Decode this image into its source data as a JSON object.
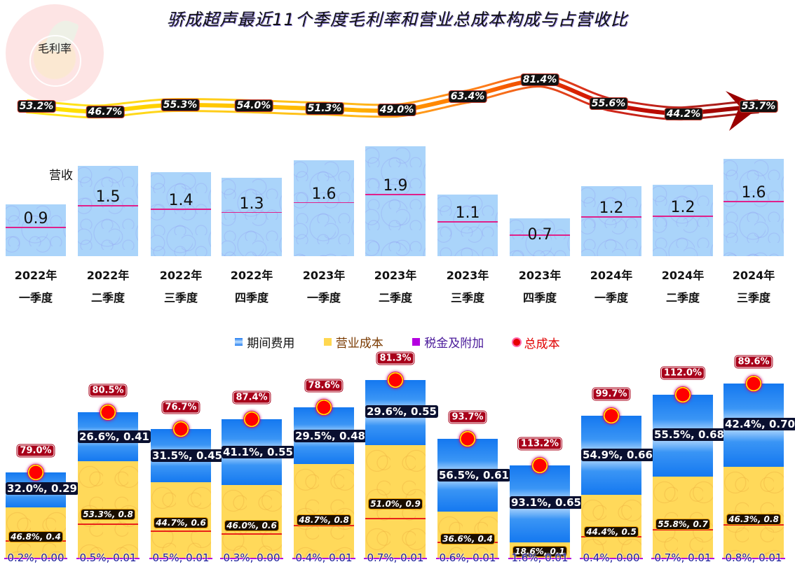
{
  "title": "骄成超声最近11个季度毛利率和营业总成本构成与占营收比",
  "logo_label": "毛利率",
  "revenue_axis_label": "营收",
  "legend": [
    {
      "label": "期间费用",
      "color": "#1e7af0",
      "swatch": "blue"
    },
    {
      "label": "营业成本",
      "color": "#ffd750",
      "swatch": "yellow"
    },
    {
      "label": "税金及附加",
      "color": "#b400e0",
      "swatch": "purple"
    },
    {
      "label": "总成本",
      "color": "#e60000",
      "swatch": "dot"
    }
  ],
  "quarters": [
    {
      "year": "2022年",
      "q": "一季度",
      "gross_margin": "53.2%",
      "revenue": "0.9",
      "total_cost_pct": "79.0%",
      "period_expense": "32.0%, 0.29",
      "operating_cost": "46.8%,  0.4",
      "tax": "0.2%, 0.00"
    },
    {
      "year": "2022年",
      "q": "二季度",
      "gross_margin": "46.7%",
      "revenue": "1.5",
      "total_cost_pct": "80.5%",
      "period_expense": "26.6%, 0.41",
      "operating_cost": "53.3%,  0.8",
      "tax": "0.5%, 0.01"
    },
    {
      "year": "2022年",
      "q": "三季度",
      "gross_margin": "55.3%",
      "revenue": "1.4",
      "total_cost_pct": "76.7%",
      "period_expense": "31.5%, 0.45",
      "operating_cost": "44.7%,  0.6",
      "tax": "0.5%, 0.01"
    },
    {
      "year": "2022年",
      "q": "四季度",
      "gross_margin": "54.0%",
      "revenue": "1.3",
      "total_cost_pct": "87.4%",
      "period_expense": "41.1%, 0.55",
      "operating_cost": "46.0%,  0.6",
      "tax": "0.3%, 0.00"
    },
    {
      "year": "2023年",
      "q": "一季度",
      "gross_margin": "51.3%",
      "revenue": "1.6",
      "total_cost_pct": "78.6%",
      "period_expense": "29.5%, 0.48",
      "operating_cost": "48.7%,  0.8",
      "tax": "0.4%, 0.01"
    },
    {
      "year": "2023年",
      "q": "二季度",
      "gross_margin": "49.0%",
      "revenue": "1.9",
      "total_cost_pct": "81.3%",
      "period_expense": "29.6%, 0.55",
      "operating_cost": "51.0%,  0.9",
      "tax": "0.7%, 0.01"
    },
    {
      "year": "2023年",
      "q": "三季度",
      "gross_margin": "63.4%",
      "revenue": "1.1",
      "total_cost_pct": "93.7%",
      "period_expense": "56.5%, 0.61",
      "operating_cost": "36.6%,  0.4",
      "tax": "0.6%, 0.01"
    },
    {
      "year": "2023年",
      "q": "四季度",
      "gross_margin": "81.4%",
      "revenue": "0.7",
      "total_cost_pct": "113.2%",
      "period_expense": "93.1%, 0.65",
      "operating_cost": "18.6%,  0.1",
      "tax": "1.6%, 0.01"
    },
    {
      "year": "2024年",
      "q": "一季度",
      "gross_margin": "55.6%",
      "revenue": "1.2",
      "total_cost_pct": "99.7%",
      "period_expense": "54.9%, 0.66",
      "operating_cost": "44.4%,  0.5",
      "tax": "0.4%, 0.00"
    },
    {
      "year": "2024年",
      "q": "二季度",
      "gross_margin": "44.2%",
      "revenue": "1.2",
      "total_cost_pct": "112.0%",
      "period_expense": "55.5%, 0.68",
      "operating_cost": "55.8%,  0.7",
      "tax": "0.7%, 0.01"
    },
    {
      "year": "2024年",
      "q": "三季度",
      "gross_margin": "53.7%",
      "revenue": "1.6",
      "total_cost_pct": "89.6%",
      "period_expense": "42.4%, 0.70",
      "operating_cost": "46.3%,  0.8",
      "tax": "0.8%, 0.01"
    }
  ],
  "colors": {
    "revenue_bar": "#aad4fa",
    "revenue_midline": "#e0218a",
    "period_expense": "#1478f0",
    "operating_cost": "#ffd95a",
    "tax": "#b400e0",
    "total_cost": "#e60000",
    "gm_line_start": "#ffe000",
    "gm_line_mid": "#ff8c00",
    "gm_line_end": "#a00000"
  },
  "chart_data": [
    {
      "type": "line",
      "title": "毛利率",
      "categories": [
        "2022年一季度",
        "2022年二季度",
        "2022年三季度",
        "2022年四季度",
        "2023年一季度",
        "2023年二季度",
        "2023年三季度",
        "2023年四季度",
        "2024年一季度",
        "2024年二季度",
        "2024年三季度"
      ],
      "series": [
        {
          "name": "毛利率",
          "values": [
            53.2,
            46.7,
            55.3,
            54.0,
            51.3,
            49.0,
            63.4,
            81.4,
            55.6,
            44.2,
            53.7
          ],
          "unit": "%"
        }
      ],
      "xlabel": "",
      "ylabel": "",
      "grid": false
    },
    {
      "type": "bar",
      "title": "营收",
      "categories": [
        "2022年一季度",
        "2022年二季度",
        "2022年三季度",
        "2022年四季度",
        "2023年一季度",
        "2023年二季度",
        "2023年三季度",
        "2023年四季度",
        "2024年一季度",
        "2024年二季度",
        "2024年三季度"
      ],
      "values": [
        0.9,
        1.5,
        1.4,
        1.3,
        1.6,
        1.9,
        1.1,
        0.7,
        1.2,
        1.2,
        1.6
      ],
      "ylabel": "营收",
      "grid": false
    },
    {
      "type": "bar",
      "stacked": true,
      "title": "营业总成本构成与占营收比",
      "categories": [
        "2022年一季度",
        "2022年二季度",
        "2022年三季度",
        "2022年四季度",
        "2023年一季度",
        "2023年二季度",
        "2023年三季度",
        "2023年四季度",
        "2024年一季度",
        "2024年二季度",
        "2024年三季度"
      ],
      "series": [
        {
          "name": "税金及附加",
          "pct": [
            0.2,
            0.5,
            0.5,
            0.3,
            0.4,
            0.7,
            0.6,
            1.6,
            0.4,
            0.7,
            0.8
          ],
          "values": [
            0.0,
            0.01,
            0.01,
            0.0,
            0.01,
            0.01,
            0.01,
            0.01,
            0.0,
            0.01,
            0.01
          ]
        },
        {
          "name": "营业成本",
          "pct": [
            46.8,
            53.3,
            44.7,
            46.0,
            48.7,
            51.0,
            36.6,
            18.6,
            44.4,
            55.8,
            46.3
          ],
          "values": [
            0.4,
            0.8,
            0.6,
            0.6,
            0.8,
            0.9,
            0.4,
            0.1,
            0.5,
            0.7,
            0.8
          ]
        },
        {
          "name": "期间费用",
          "pct": [
            32.0,
            26.6,
            31.5,
            41.1,
            29.5,
            29.6,
            56.5,
            93.1,
            54.9,
            55.5,
            42.4
          ],
          "values": [
            0.29,
            0.41,
            0.45,
            0.55,
            0.48,
            0.55,
            0.61,
            0.65,
            0.66,
            0.68,
            0.7
          ]
        },
        {
          "name": "总成本",
          "pct": [
            79.0,
            80.5,
            76.7,
            87.4,
            78.6,
            81.3,
            93.7,
            113.2,
            99.7,
            112.0,
            89.6
          ]
        }
      ],
      "legend_position": "top"
    }
  ]
}
